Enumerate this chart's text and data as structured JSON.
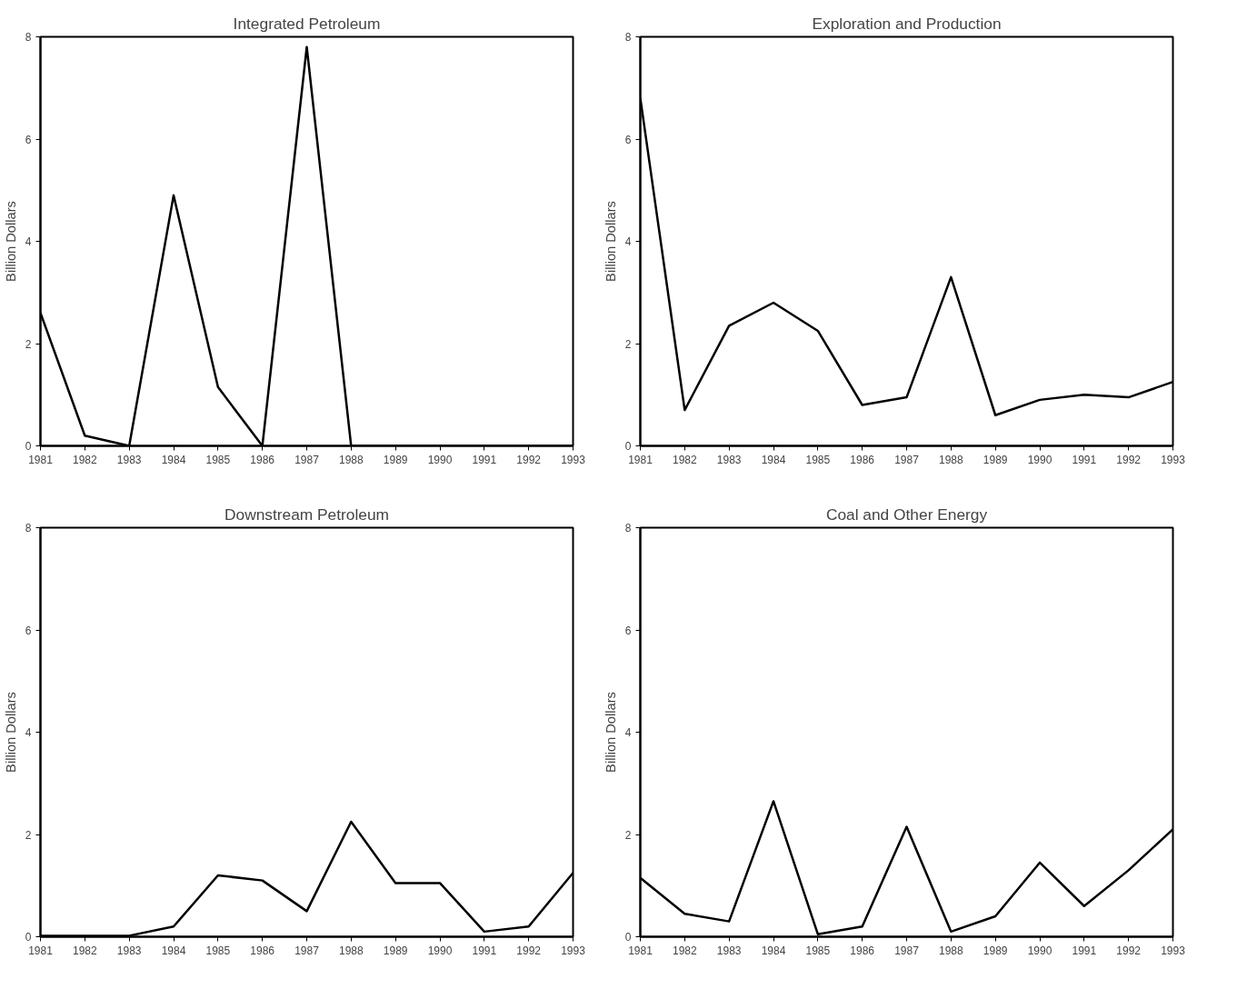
{
  "chart_data": [
    {
      "type": "line",
      "title": "Integrated Petroleum",
      "ylabel": "Billion Dollars",
      "x": [
        1981,
        1982,
        1983,
        1984,
        1985,
        1986,
        1987,
        1988,
        1989,
        1990,
        1991,
        1992,
        1993
      ],
      "series": [
        {
          "color": "#000000",
          "values": [
            2.6,
            0.2,
            0,
            4.9,
            1.15,
            0,
            7.8,
            0,
            0,
            0,
            0,
            0,
            0
          ]
        }
      ],
      "xlim": [
        1981,
        1993
      ],
      "xticks": [
        1981,
        1982,
        1983,
        1984,
        1985,
        1986,
        1987,
        1988,
        1989,
        1990,
        1991,
        1992,
        1993
      ],
      "ylim": [
        0,
        8
      ],
      "yticks": [
        0,
        2,
        4,
        6,
        8
      ],
      "grid": false,
      "marker": "none",
      "line_style": "solid"
    },
    {
      "type": "line",
      "title": "Exploration and Production",
      "ylabel": "Billion Dollars",
      "x": [
        1981,
        1982,
        1983,
        1984,
        1985,
        1986,
        1987,
        1988,
        1989,
        1990,
        1991,
        1992,
        1993
      ],
      "series": [
        {
          "color": "#000000",
          "values": [
            6.8,
            0.7,
            2.35,
            2.8,
            2.25,
            0.8,
            0.95,
            3.3,
            0.6,
            0.9,
            1.0,
            0.95,
            1.25
          ]
        }
      ],
      "xlim": [
        1981,
        1993
      ],
      "xticks": [
        1981,
        1982,
        1983,
        1984,
        1985,
        1986,
        1987,
        1988,
        1989,
        1990,
        1991,
        1992,
        1993
      ],
      "ylim": [
        0,
        8
      ],
      "yticks": [
        0,
        2,
        4,
        6,
        8
      ],
      "grid": false,
      "marker": "none",
      "line_style": "solid"
    },
    {
      "type": "line",
      "title": "Downstream Petroleum",
      "ylabel": "Billion Dollars",
      "x": [
        1981,
        1982,
        1983,
        1984,
        1985,
        1986,
        1987,
        1988,
        1989,
        1990,
        1991,
        1992,
        1993
      ],
      "series": [
        {
          "color": "#000000",
          "values": [
            0.02,
            0.02,
            0.02,
            0.2,
            1.2,
            1.1,
            0.5,
            2.25,
            1.05,
            1.05,
            0.1,
            0.2,
            1.25
          ]
        }
      ],
      "xlim": [
        1981,
        1993
      ],
      "xticks": [
        1981,
        1982,
        1983,
        1984,
        1985,
        1986,
        1987,
        1988,
        1989,
        1990,
        1991,
        1992,
        1993
      ],
      "ylim": [
        0,
        8
      ],
      "yticks": [
        0,
        2,
        4,
        6,
        8
      ],
      "grid": false,
      "marker": "none",
      "line_style": "solid"
    },
    {
      "type": "line",
      "title": "Coal and Other Energy",
      "ylabel": "Billion Dollars",
      "x": [
        1981,
        1982,
        1983,
        1984,
        1985,
        1986,
        1987,
        1988,
        1989,
        1990,
        1991,
        1992,
        1993
      ],
      "series": [
        {
          "color": "#000000",
          "values": [
            1.15,
            0.45,
            0.3,
            2.65,
            0.05,
            0.2,
            2.15,
            0.1,
            0.4,
            1.45,
            0.6,
            1.3,
            2.1
          ]
        }
      ],
      "xlim": [
        1981,
        1993
      ],
      "xticks": [
        1981,
        1982,
        1983,
        1984,
        1985,
        1986,
        1987,
        1988,
        1989,
        1990,
        1991,
        1992,
        1993
      ],
      "ylim": [
        0,
        8
      ],
      "yticks": [
        0,
        2,
        4,
        6,
        8
      ],
      "grid": false,
      "marker": "none",
      "line_style": "solid"
    }
  ]
}
